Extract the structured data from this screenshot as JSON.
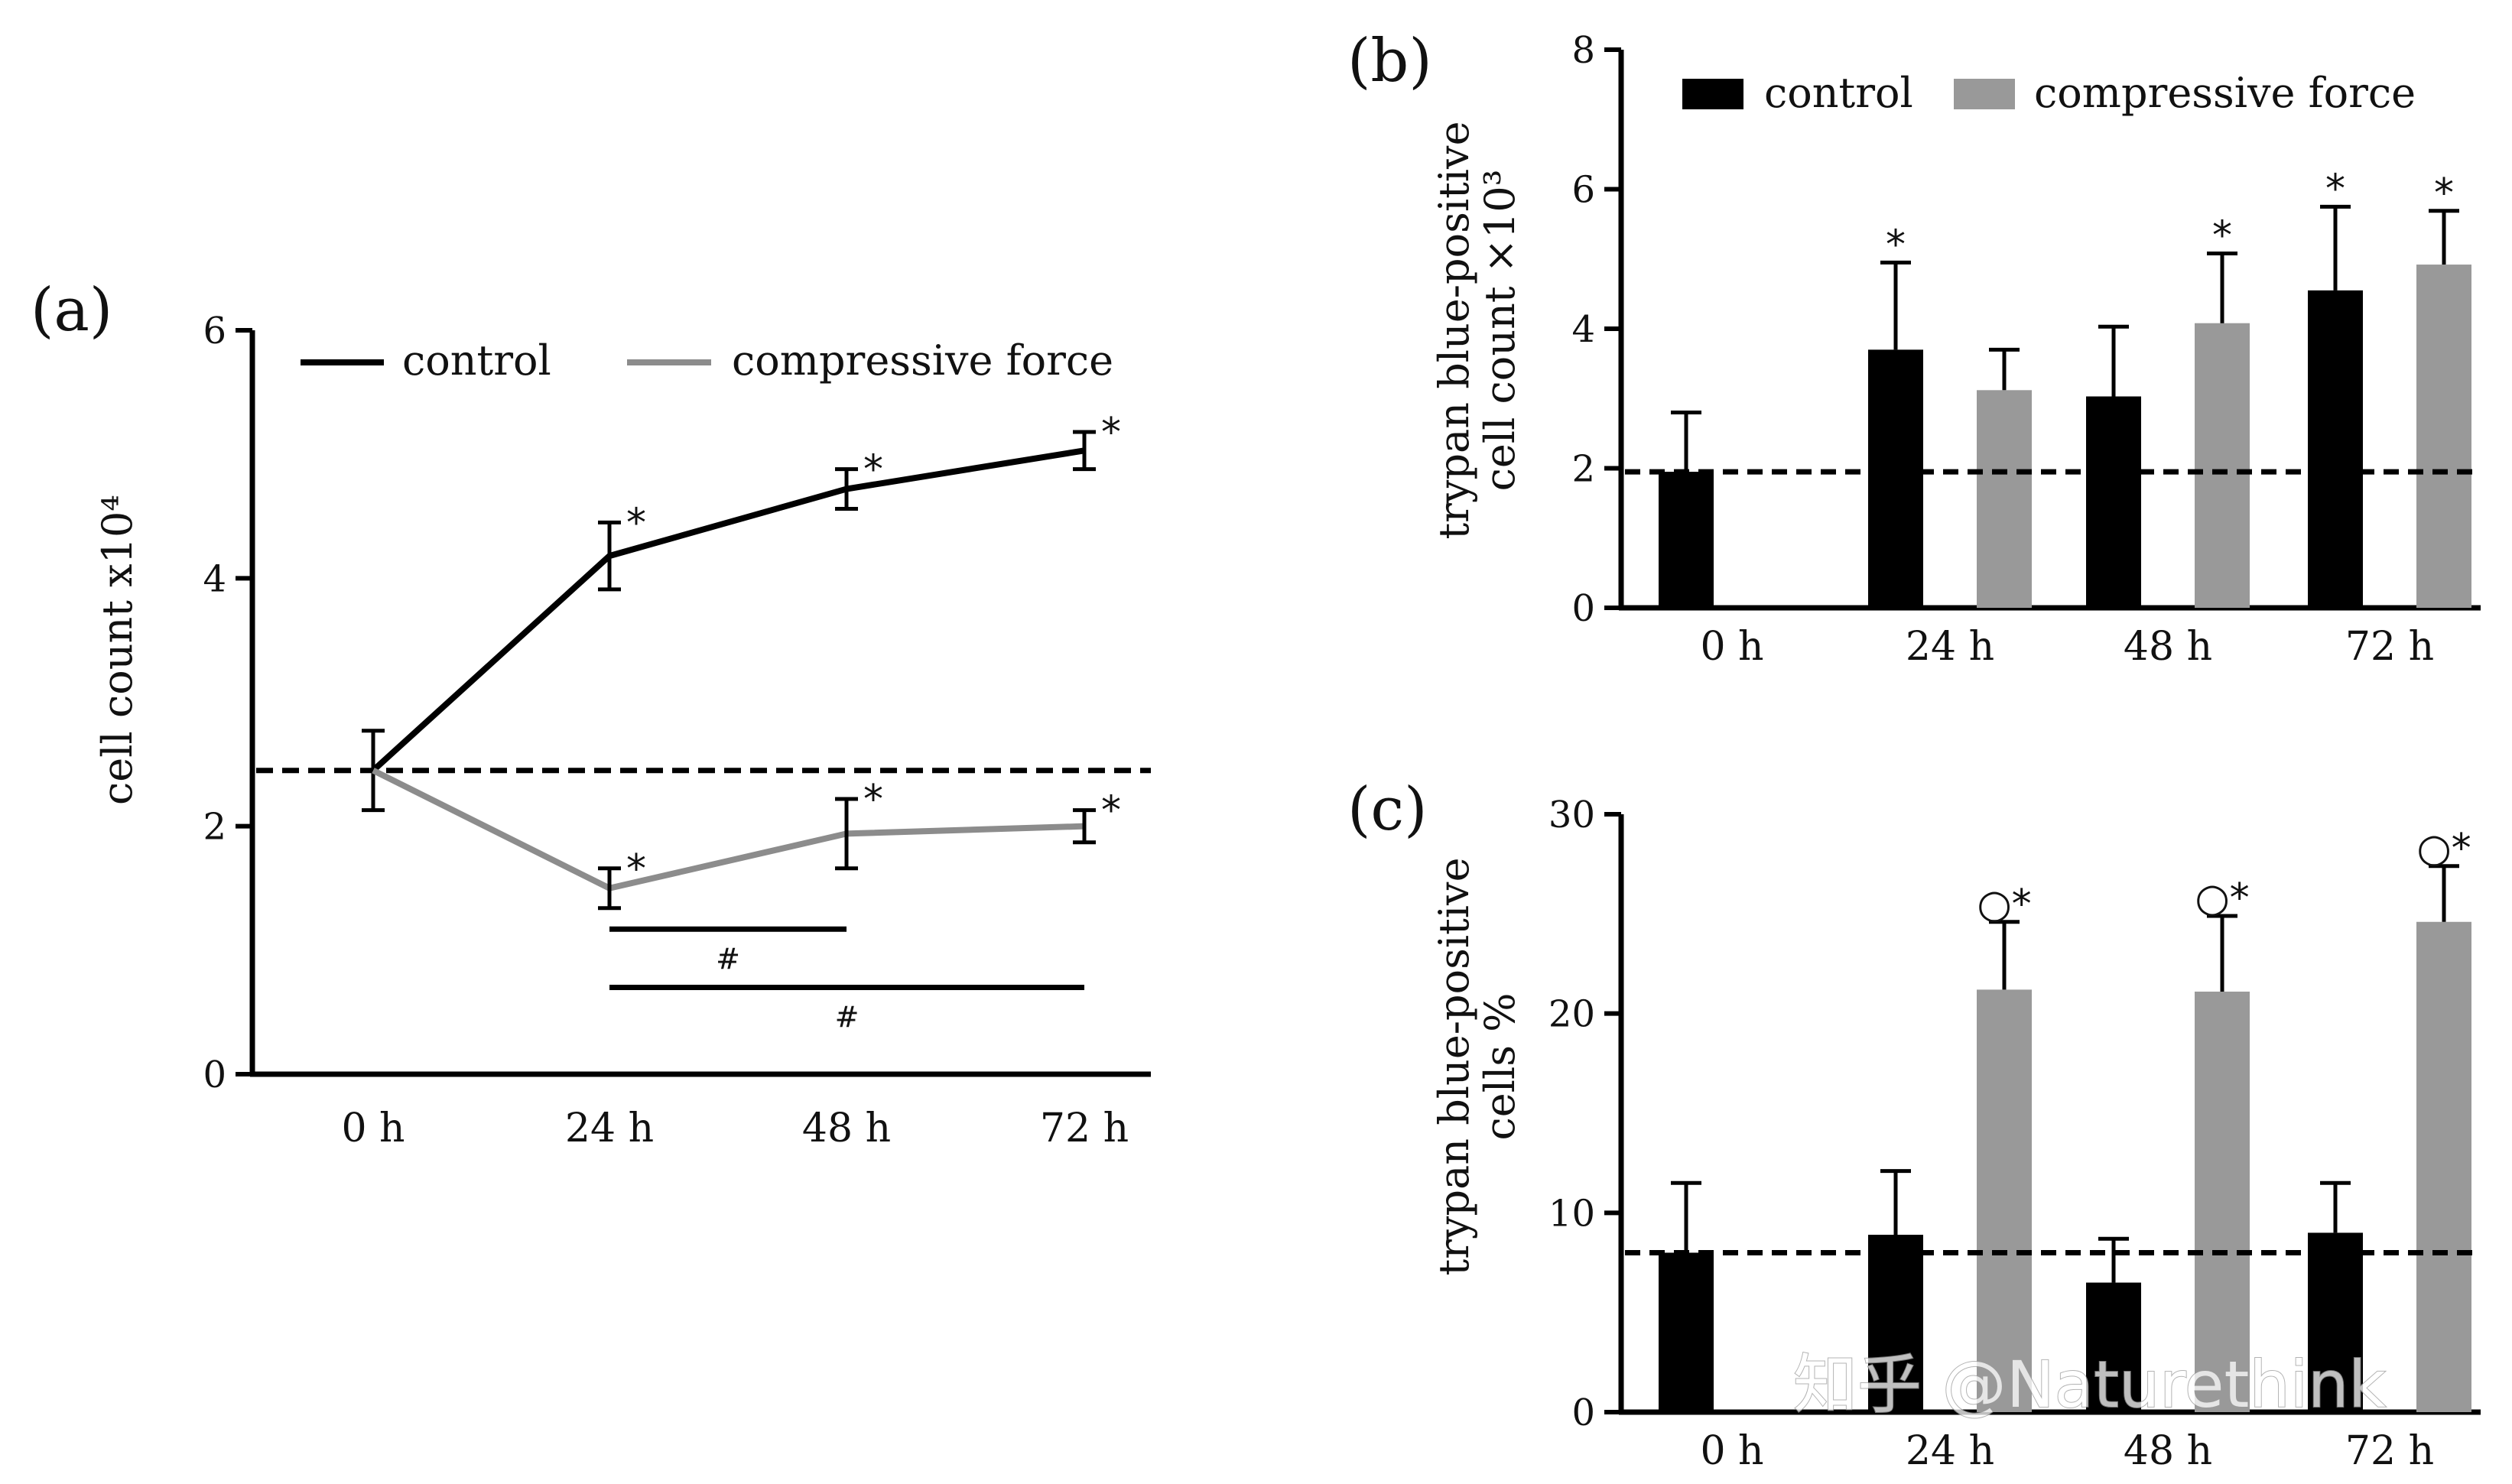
{
  "figure": {
    "colors": {
      "control": "#000000",
      "compressive": "#999999",
      "line_compressive": "#8c8c8c",
      "axis": "#000000"
    },
    "watermark": "知乎 @Naturethink"
  },
  "chart_data": [
    {
      "id": "a",
      "panel_label": "(a)",
      "type": "line",
      "title": "",
      "xlabel": "",
      "ylabel": "cell count x10⁴",
      "categories": [
        "0 h",
        "24 h",
        "48 h",
        "72 h"
      ],
      "ylim": [
        0,
        6
      ],
      "yticks": [
        0,
        2,
        4,
        6
      ],
      "legend_position": "top",
      "baseline": 2.45,
      "series": [
        {
          "name": "control",
          "values": [
            2.45,
            4.18,
            4.72,
            5.03
          ],
          "errors": [
            0.32,
            0.27,
            0.16,
            0.15
          ],
          "sig": [
            "",
            "*",
            "*",
            "*"
          ]
        },
        {
          "name": "compressive force",
          "values": [
            2.45,
            1.5,
            1.94,
            2.0
          ],
          "errors": [
            0.32,
            0.16,
            0.28,
            0.13
          ],
          "sig": [
            "",
            "*",
            "*",
            "*"
          ]
        }
      ],
      "brackets": [
        {
          "from": "24 h",
          "to": "48 h",
          "y": 1.17,
          "label": "#"
        },
        {
          "from": "24 h",
          "to": "72 h",
          "y": 0.7,
          "label": "#"
        }
      ]
    },
    {
      "id": "b",
      "panel_label": "(b)",
      "type": "bar",
      "title": "",
      "xlabel": "",
      "ylabel_lines": [
        "trypan blue-positive",
        "cell count ×10³"
      ],
      "categories": [
        "0 h",
        "24 h",
        "48 h",
        "72 h"
      ],
      "ylim": [
        0,
        8
      ],
      "yticks": [
        0,
        2,
        4,
        6,
        8
      ],
      "legend_position": "top",
      "baseline": 1.95,
      "series": [
        {
          "name": "control",
          "values": [
            1.95,
            3.7,
            3.03,
            4.55
          ],
          "errors": [
            0.85,
            1.25,
            1.0,
            1.2
          ],
          "sig": [
            "",
            "*",
            "",
            "*"
          ]
        },
        {
          "name": "compressive force",
          "values": [
            null,
            3.12,
            4.08,
            4.92
          ],
          "errors": [
            null,
            0.58,
            1.0,
            0.77
          ],
          "sig": [
            "",
            "",
            "*",
            "*"
          ]
        }
      ]
    },
    {
      "id": "c",
      "panel_label": "(c)",
      "type": "bar",
      "title": "",
      "xlabel": "",
      "ylabel_lines": [
        "trypan blue-positive",
        "cells %"
      ],
      "categories": [
        "0 h",
        "24 h",
        "48 h",
        "72 h"
      ],
      "ylim": [
        0,
        30
      ],
      "yticks": [
        0,
        10,
        20,
        30
      ],
      "legend_position": "none",
      "baseline": 8.0,
      "series": [
        {
          "name": "control",
          "values": [
            8.0,
            8.9,
            6.5,
            9.0
          ],
          "errors": [
            3.5,
            3.2,
            2.2,
            2.5
          ],
          "sig": [
            "",
            "",
            "",
            ""
          ]
        },
        {
          "name": "compressive force",
          "values": [
            null,
            21.2,
            21.1,
            24.6
          ],
          "errors": [
            null,
            3.4,
            3.8,
            2.8
          ],
          "sig": [
            "",
            "○*",
            "○*",
            "○*"
          ]
        }
      ]
    }
  ]
}
